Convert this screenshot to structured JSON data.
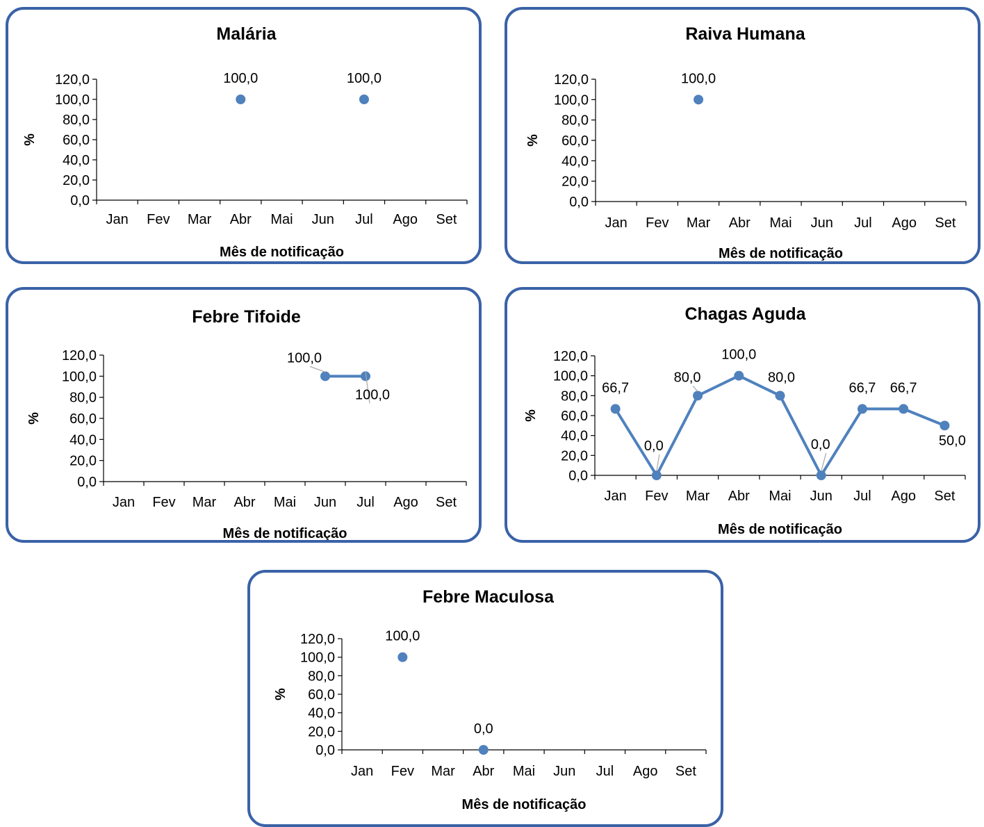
{
  "colors": {
    "border": "#3a62a7",
    "series": "#4f81bd",
    "axis": "#000000",
    "leader": "#a6a6a6"
  },
  "chart_data": [
    {
      "type": "line",
      "title": "Malária",
      "ylabel": "%",
      "xlabel": "Mês de notificação",
      "categories": [
        "Jan",
        "Fev",
        "Mar",
        "Abr",
        "Mai",
        "Jun",
        "Jul",
        "Ago",
        "Set"
      ],
      "values": [
        null,
        null,
        null,
        100,
        null,
        null,
        100,
        null,
        null
      ],
      "labels": [
        "",
        "",
        "",
        "100,0",
        "",
        "",
        "100,0",
        "",
        ""
      ],
      "yticks": [
        "0,0",
        "20,0",
        "40,0",
        "60,0",
        "80,0",
        "100,0",
        "120,0"
      ],
      "ylim": [
        0,
        120
      ],
      "grid": false
    },
    {
      "type": "line",
      "title": "Raiva Humana",
      "ylabel": "%",
      "xlabel": "Mês de notificação",
      "categories": [
        "Jan",
        "Fev",
        "Mar",
        "Abr",
        "Mai",
        "Jun",
        "Jul",
        "Ago",
        "Set"
      ],
      "values": [
        null,
        null,
        100,
        null,
        null,
        null,
        null,
        null,
        null
      ],
      "labels": [
        "",
        "",
        "100,0",
        "",
        "",
        "",
        "",
        "",
        ""
      ],
      "yticks": [
        "0,0",
        "20,0",
        "40,0",
        "60,0",
        "80,0",
        "100,0",
        "120,0"
      ],
      "ylim": [
        0,
        120
      ],
      "grid": false
    },
    {
      "type": "line",
      "title": "Febre Tifoide",
      "ylabel": "%",
      "xlabel": "Mês de notificação",
      "categories": [
        "Jan",
        "Fev",
        "Mar",
        "Abr",
        "Mai",
        "Jun",
        "Jul",
        "Ago",
        "Set"
      ],
      "values": [
        null,
        null,
        null,
        null,
        null,
        100,
        100,
        null,
        null
      ],
      "labels": [
        "",
        "",
        "",
        "",
        "",
        "100,0",
        "100,0",
        "",
        ""
      ],
      "yticks": [
        "0,0",
        "20,0",
        "40,0",
        "60,0",
        "80,0",
        "100,0",
        "120,0"
      ],
      "ylim": [
        0,
        120
      ],
      "grid": false
    },
    {
      "type": "line",
      "title": "Chagas Aguda",
      "ylabel": "%",
      "xlabel": "Mês de notificação",
      "categories": [
        "Jan",
        "Fev",
        "Mar",
        "Abr",
        "Mai",
        "Jun",
        "Jul",
        "Ago",
        "Set"
      ],
      "values": [
        66.7,
        0,
        80,
        100,
        80,
        0,
        66.7,
        66.7,
        50
      ],
      "labels": [
        "66,7",
        "0,0",
        "80,0",
        "100,0",
        "80,0",
        "0,0",
        "66,7",
        "66,7",
        "50,0"
      ],
      "yticks": [
        "0,0",
        "20,0",
        "40,0",
        "60,0",
        "80,0",
        "100,0",
        "120,0"
      ],
      "ylim": [
        0,
        120
      ],
      "grid": false
    },
    {
      "type": "line",
      "title": "Febre Maculosa",
      "ylabel": "%",
      "xlabel": "Mês de notificação",
      "categories": [
        "Jan",
        "Fev",
        "Mar",
        "Abr",
        "Mai",
        "Jun",
        "Jul",
        "Ago",
        "Set"
      ],
      "values": [
        null,
        100,
        null,
        0,
        null,
        null,
        null,
        null,
        null
      ],
      "labels": [
        "",
        "100,0",
        "",
        "0,0",
        "",
        "",
        "",
        "",
        ""
      ],
      "yticks": [
        "0,0",
        "20,0",
        "40,0",
        "60,0",
        "80,0",
        "100,0",
        "120,0"
      ],
      "ylim": [
        0,
        120
      ],
      "grid": false
    }
  ]
}
